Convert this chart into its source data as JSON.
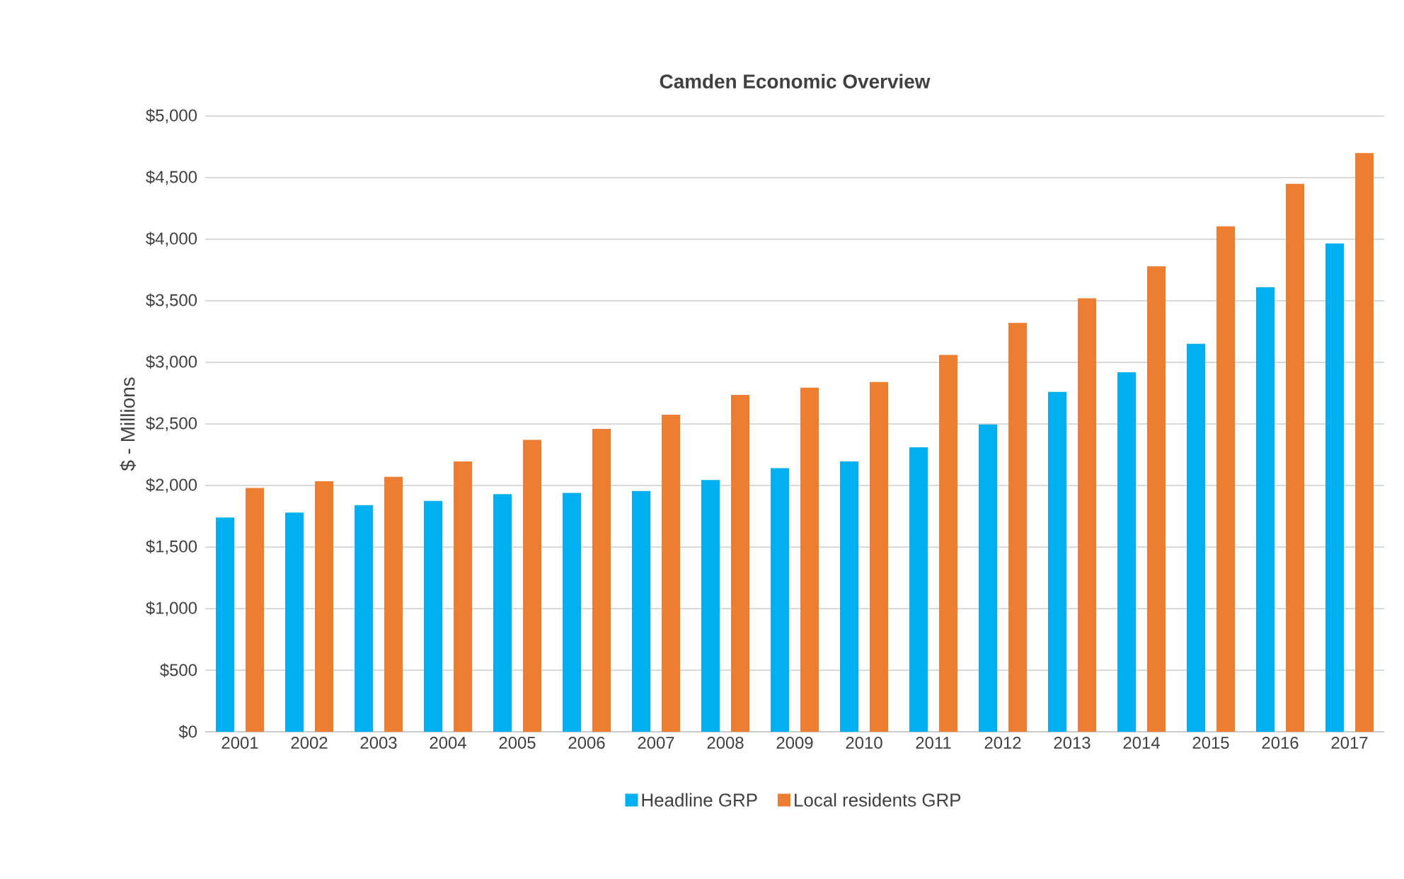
{
  "chart_data": {
    "type": "bar",
    "title": "Camden Economic Overview",
    "ylabel": "$ - Millions",
    "categories": [
      "2001",
      "2002",
      "2003",
      "2004",
      "2005",
      "2006",
      "2007",
      "2008",
      "2009",
      "2010",
      "2011",
      "2012",
      "2013",
      "2014",
      "2015",
      "2016",
      "2017"
    ],
    "series": [
      {
        "name": "Headline GRP",
        "color": "#00b0f0",
        "values": [
          1740,
          1780,
          1840,
          1875,
          1930,
          1940,
          1955,
          2045,
          2140,
          2195,
          2310,
          2495,
          2760,
          2920,
          3150,
          3610,
          3965
        ]
      },
      {
        "name": "Local residents GRP",
        "color": "#ed7d31",
        "values": [
          1980,
          2035,
          2070,
          2195,
          2370,
          2460,
          2575,
          2735,
          2795,
          2840,
          3060,
          3320,
          3520,
          3780,
          4105,
          4450,
          4700
        ]
      }
    ],
    "ylim": [
      0,
      5000
    ],
    "yticks": [
      {
        "value": 0,
        "label": "$0"
      },
      {
        "value": 500,
        "label": "$500"
      },
      {
        "value": 1000,
        "label": "$1,000"
      },
      {
        "value": 1500,
        "label": "$1,500"
      },
      {
        "value": 2000,
        "label": "$2,000"
      },
      {
        "value": 2500,
        "label": "$2,500"
      },
      {
        "value": 3000,
        "label": "$3,000"
      },
      {
        "value": 3500,
        "label": "$3,500"
      },
      {
        "value": 4000,
        "label": "$4,000"
      },
      {
        "value": 4500,
        "label": "$4,500"
      },
      {
        "value": 5000,
        "label": "$5,000"
      }
    ],
    "grid": "y",
    "legend": "bottom"
  }
}
